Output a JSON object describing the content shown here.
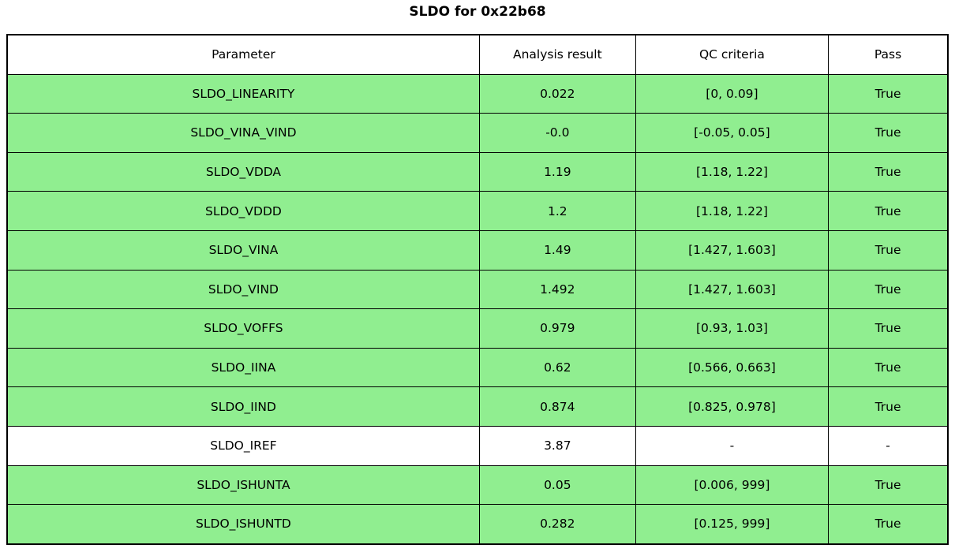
{
  "chart_data": {
    "type": "table",
    "title": "SLDO for 0x22b68",
    "columns": [
      "Parameter",
      "Analysis result",
      "QC criteria",
      "Pass"
    ],
    "legend_position": "none",
    "grid": "full-cell-borders",
    "rows": [
      {
        "parameter": "SLDO_LINEARITY",
        "result": "0.022",
        "criteria": "[0, 0.09]",
        "pass": "True",
        "bg": "#90ee90"
      },
      {
        "parameter": "SLDO_VINA_VIND",
        "result": "-0.0",
        "criteria": "[-0.05, 0.05]",
        "pass": "True",
        "bg": "#90ee90"
      },
      {
        "parameter": "SLDO_VDDA",
        "result": "1.19",
        "criteria": "[1.18, 1.22]",
        "pass": "True",
        "bg": "#90ee90"
      },
      {
        "parameter": "SLDO_VDDD",
        "result": "1.2",
        "criteria": "[1.18, 1.22]",
        "pass": "True",
        "bg": "#90ee90"
      },
      {
        "parameter": "SLDO_VINA",
        "result": "1.49",
        "criteria": "[1.427, 1.603]",
        "pass": "True",
        "bg": "#90ee90"
      },
      {
        "parameter": "SLDO_VIND",
        "result": "1.492",
        "criteria": "[1.427, 1.603]",
        "pass": "True",
        "bg": "#90ee90"
      },
      {
        "parameter": "SLDO_VOFFS",
        "result": "0.979",
        "criteria": "[0.93, 1.03]",
        "pass": "True",
        "bg": "#90ee90"
      },
      {
        "parameter": "SLDO_IINA",
        "result": "0.62",
        "criteria": "[0.566, 0.663]",
        "pass": "True",
        "bg": "#90ee90"
      },
      {
        "parameter": "SLDO_IIND",
        "result": "0.874",
        "criteria": "[0.825, 0.978]",
        "pass": "True",
        "bg": "#90ee90"
      },
      {
        "parameter": "SLDO_IREF",
        "result": "3.87",
        "criteria": "-",
        "pass": "-",
        "bg": "#ffffff"
      },
      {
        "parameter": "SLDO_ISHUNTA",
        "result": "0.05",
        "criteria": "[0.006, 999]",
        "pass": "True",
        "bg": "#90ee90"
      },
      {
        "parameter": "SLDO_ISHUNTD",
        "result": "0.282",
        "criteria": "[0.125, 999]",
        "pass": "True",
        "bg": "#90ee90"
      }
    ],
    "colors": {
      "pass_row": "#90ee90",
      "neutral_row": "#ffffff",
      "border": "#000000",
      "background": "#ffffff",
      "text": "#000000"
    }
  }
}
